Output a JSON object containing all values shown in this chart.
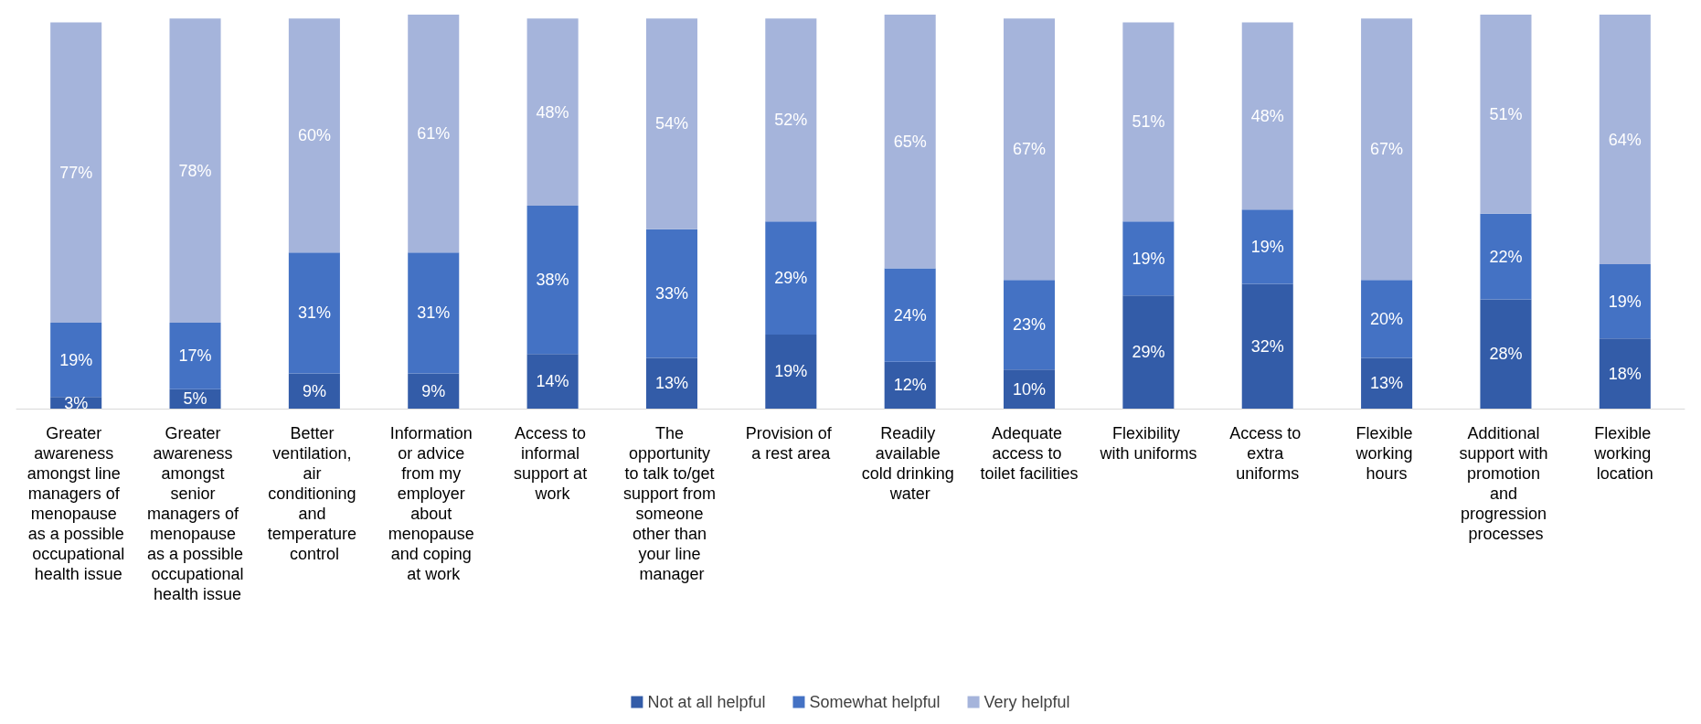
{
  "chart_data": {
    "type": "bar",
    "stacked": true,
    "legend": "bottom",
    "categories": [
      "Greater awareness amongst line managers of menopause as a possible occupational health issue",
      "Greater awareness amongst senior managers of menopause as a possible occupational health issue",
      "Better ventilation, air conditioning and temperature control",
      "Information or advice from my employer about menopause and coping at work",
      "Access to informal support at work",
      "The opportunity to talk to/get support from someone other than your line manager",
      "Provision of a rest area",
      "Readily available cold drinking water",
      "Adequate access to toilet facilities",
      "Flexibility with uniforms",
      "Access to extra uniforms",
      "Flexible working hours",
      "Additional support with promotion and progression processes",
      "Flexible working location"
    ],
    "series": [
      {
        "name": "Not at all helpful",
        "color": "#335ca8",
        "values": [
          3,
          5,
          9,
          9,
          14,
          13,
          19,
          12,
          10,
          29,
          32,
          13,
          28,
          18
        ],
        "value_labels": [
          "3%",
          "5%",
          "9%",
          "9%",
          "14%",
          "13%",
          "19%",
          "12%",
          "10%",
          "29%",
          "32%",
          "13%",
          "28%",
          "18%"
        ]
      },
      {
        "name": "Somewhat helpful",
        "color": "#4472c4",
        "values": [
          19,
          17,
          31,
          31,
          38,
          33,
          29,
          24,
          23,
          19,
          19,
          20,
          22,
          19
        ],
        "value_labels": [
          "19%",
          "17%",
          "31%",
          "31%",
          "38%",
          "33%",
          "29%",
          "24%",
          "23%",
          "19%",
          "19%",
          "20%",
          "22%",
          "19%"
        ]
      },
      {
        "name": "Very helpful",
        "color": "#a5b4db",
        "values": [
          77,
          78,
          60,
          61,
          48,
          54,
          52,
          65,
          67,
          51,
          48,
          67,
          51,
          64
        ],
        "value_labels": [
          "77%",
          "78%",
          "60%",
          "61%",
          "48%",
          "54%",
          "52%",
          "65%",
          "67%",
          "51%",
          "48%",
          "67%",
          "51%",
          "64%"
        ]
      }
    ]
  }
}
